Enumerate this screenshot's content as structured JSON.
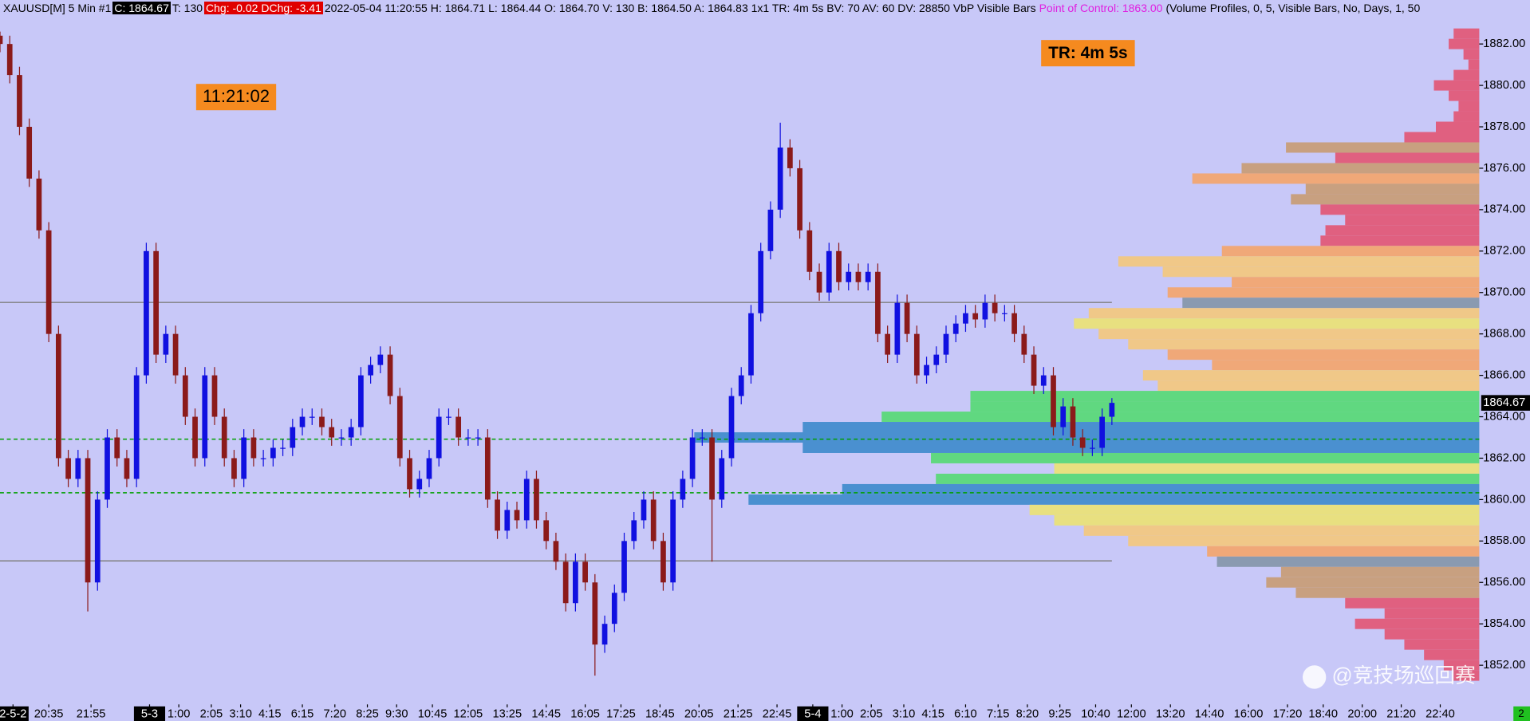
{
  "header": {
    "items": [
      "XAUUSD[M]  5 Min   #1",
      "C: 1864.67",
      "T: 130",
      "Chg: -0.02",
      "DChg: -3.41",
      "2022-05-04 11:20:55 H: 1864.71 L: 1864.44 O: 1864.70 V: 130 B: 1864.50 A: 1864.83 1x1 TR: 4m 5s BV: 70 AV: 60 DV: 28850 VbP Visible Bars",
      "Point of Control: 1863.00",
      "(Volume Profiles, 0, 5, Visible Bars, No, Days, 1, 50"
    ]
  },
  "annotations": {
    "clock": "11:21:02",
    "timer": "TR: 4m 5s",
    "corner": "2",
    "watermark": "@竞技场巡回赛"
  },
  "chart_data": {
    "type": "candlestick",
    "up_color": "#1010e0",
    "down_color": "#8b1a1a",
    "xlim": [
      0,
      455
    ],
    "ylim": [
      1850.11,
      1883.37
    ],
    "yticks": [
      {
        "value": 1852,
        "label": "1852.00"
      },
      {
        "value": 1854,
        "label": "1854.00"
      },
      {
        "value": 1856,
        "label": "1856.00"
      },
      {
        "value": 1858,
        "label": "1858.00"
      },
      {
        "value": 1860,
        "label": "1860.00"
      },
      {
        "value": 1862,
        "label": "1862.00"
      },
      {
        "value": 1864,
        "label": "1864.00"
      },
      {
        "value": 1866,
        "label": "1866.00"
      },
      {
        "value": 1868,
        "label": "1868.00"
      },
      {
        "value": 1870,
        "label": "1870.00"
      },
      {
        "value": 1872,
        "label": "1872.00"
      },
      {
        "value": 1874,
        "label": "1874.00"
      },
      {
        "value": 1876,
        "label": "1876.00"
      },
      {
        "value": 1878,
        "label": "1878.00"
      },
      {
        "value": 1880,
        "label": "1880.00"
      },
      {
        "value": 1882,
        "label": "1882.00"
      }
    ],
    "xticks": [
      {
        "value": 4,
        "label": "2-5-2"
      },
      {
        "value": 15,
        "label": "20:35"
      },
      {
        "value": 28,
        "label": "21:55"
      },
      {
        "value": 46,
        "label": "5-3"
      },
      {
        "value": 55,
        "label": "1:00"
      },
      {
        "value": 65,
        "label": "2:05"
      },
      {
        "value": 74,
        "label": "3:10"
      },
      {
        "value": 83,
        "label": "4:15"
      },
      {
        "value": 93,
        "label": "6:15"
      },
      {
        "value": 103,
        "label": "7:20"
      },
      {
        "value": 113,
        "label": "8:25"
      },
      {
        "value": 122,
        "label": "9:30"
      },
      {
        "value": 133,
        "label": "10:45"
      },
      {
        "value": 144,
        "label": "12:05"
      },
      {
        "value": 156,
        "label": "13:25"
      },
      {
        "value": 168,
        "label": "14:45"
      },
      {
        "value": 180,
        "label": "16:05"
      },
      {
        "value": 191,
        "label": "17:25"
      },
      {
        "value": 203,
        "label": "18:45"
      },
      {
        "value": 215,
        "label": "20:05"
      },
      {
        "value": 227,
        "label": "21:25"
      },
      {
        "value": 239,
        "label": "22:45"
      },
      {
        "value": 250,
        "label": "5-4"
      },
      {
        "value": 259,
        "label": "1:00"
      },
      {
        "value": 268,
        "label": "2:05"
      },
      {
        "value": 278,
        "label": "3:10"
      },
      {
        "value": 287,
        "label": "4:15"
      },
      {
        "value": 297,
        "label": "6:10"
      },
      {
        "value": 307,
        "label": "7:15"
      },
      {
        "value": 316,
        "label": "8:20"
      },
      {
        "value": 326,
        "label": "9:25"
      },
      {
        "value": 337,
        "label": "10:40"
      },
      {
        "value": 348,
        "label": "12:00"
      },
      {
        "value": 360,
        "label": "13:20"
      },
      {
        "value": 372,
        "label": "14:40"
      },
      {
        "value": 384,
        "label": "16:00"
      },
      {
        "value": 396,
        "label": "17:20"
      },
      {
        "value": 407,
        "label": "18:40"
      },
      {
        "value": 419,
        "label": "20:00"
      },
      {
        "value": 431,
        "label": "21:20"
      },
      {
        "value": 443,
        "label": "22:40"
      }
    ],
    "x": [
      0,
      3,
      6,
      9,
      12,
      15,
      18,
      21,
      24,
      27,
      30,
      33,
      36,
      39,
      42,
      45,
      48,
      51,
      54,
      57,
      60,
      63,
      66,
      69,
      72,
      75,
      78,
      81,
      84,
      87,
      90,
      93,
      96,
      99,
      102,
      105,
      108,
      111,
      114,
      117,
      120,
      123,
      126,
      129,
      132,
      135,
      138,
      141,
      144,
      147,
      150,
      153,
      156,
      159,
      162,
      165,
      168,
      171,
      174,
      177,
      180,
      183,
      186,
      189,
      192,
      195,
      198,
      201,
      204,
      207,
      210,
      213,
      216,
      219,
      222,
      225,
      228,
      231,
      234,
      237,
      240,
      243,
      246,
      249,
      252,
      255,
      258,
      261,
      264,
      267,
      270,
      273,
      276,
      279,
      282,
      285,
      288,
      291,
      294,
      297,
      300,
      303,
      306,
      309,
      312,
      315,
      318,
      321,
      324,
      327,
      330,
      333,
      336,
      339,
      342
    ],
    "open": [
      1882.4,
      1882,
      1880.5,
      1878,
      1875.5,
      1873,
      1868,
      1862,
      1861,
      1862,
      1856,
      1860,
      1863,
      1862,
      1861,
      1866,
      1872,
      1867,
      1868,
      1866,
      1864,
      1862,
      1866,
      1864,
      1862,
      1861,
      1863,
      1862,
      1862,
      1862.5,
      1862.5,
      1863.5,
      1864,
      1864,
      1863.5,
      1863,
      1863,
      1863.5,
      1866,
      1866.5,
      1867,
      1865,
      1862,
      1860.5,
      1861,
      1862,
      1864,
      1864,
      1863,
      1863,
      1863,
      1860,
      1858.5,
      1859.5,
      1859,
      1861,
      1859,
      1858,
      1857,
      1855,
      1857,
      1856,
      1853,
      1854,
      1855.5,
      1858,
      1859,
      1860,
      1858,
      1856,
      1860,
      1861,
      1863,
      1863,
      1860,
      1862,
      1865,
      1866,
      1869,
      1872,
      1874,
      1877,
      1876,
      1873,
      1871,
      1870,
      1872,
      1870.5,
      1871,
      1870.5,
      1871,
      1868,
      1867,
      1869.5,
      1868,
      1866,
      1866.5,
      1867,
      1868,
      1868.5,
      1869,
      1868.7,
      1869.5,
      1869,
      1869,
      1868,
      1867,
      1865.5,
      1866,
      1863.5,
      1864.5,
      1863,
      1862.5,
      1862.5,
      1864
    ],
    "high": [
      1882.6,
      1882.4,
      1880.9,
      1878.4,
      1875.9,
      1873.4,
      1868.4,
      1862.4,
      1862.4,
      1862.4,
      1860.4,
      1863.4,
      1863.4,
      1862.4,
      1866.4,
      1872.4,
      1872.4,
      1868.4,
      1868.4,
      1866.4,
      1864.4,
      1866.4,
      1866.4,
      1864.4,
      1862.4,
      1863.4,
      1863.4,
      1862.4,
      1862.9,
      1862.9,
      1863.9,
      1864.4,
      1864.4,
      1864.4,
      1863.9,
      1863.4,
      1863.9,
      1866.4,
      1866.9,
      1867.4,
      1867.4,
      1865.4,
      1862.4,
      1861.4,
      1862.4,
      1864.4,
      1864.4,
      1864.4,
      1863.4,
      1863.4,
      1863.4,
      1860.4,
      1859.9,
      1859.9,
      1861.4,
      1861.4,
      1859.4,
      1858.4,
      1857.4,
      1857.4,
      1857.4,
      1856.4,
      1854.4,
      1855.9,
      1858.4,
      1859.4,
      1860.4,
      1860.4,
      1858.4,
      1860.4,
      1861.4,
      1863.4,
      1863.4,
      1863.4,
      1862.4,
      1865.4,
      1866.4,
      1869.4,
      1872.4,
      1874.4,
      1878.2,
      1877.4,
      1876.4,
      1873.4,
      1871.4,
      1872.4,
      1872.4,
      1871.4,
      1871.4,
      1871.4,
      1871.4,
      1868.4,
      1869.9,
      1869.9,
      1868.4,
      1866.9,
      1867.4,
      1868.4,
      1868.9,
      1869.4,
      1869.4,
      1869.9,
      1869.9,
      1869.4,
      1869.4,
      1868.4,
      1867.4,
      1866.4,
      1866.4,
      1864.9,
      1864.9,
      1863.4,
      1862.9,
      1864.4,
      1864.9
    ],
    "low": [
      1881.6,
      1880.1,
      1877.6,
      1875.1,
      1872.6,
      1867.6,
      1861.6,
      1860.6,
      1860.6,
      1854.6,
      1855.6,
      1859.6,
      1861.6,
      1860.6,
      1860.6,
      1865.6,
      1866.6,
      1866.6,
      1865.6,
      1863.6,
      1861.6,
      1861.6,
      1863.6,
      1861.6,
      1860.6,
      1860.6,
      1861.6,
      1861.6,
      1861.6,
      1862.1,
      1862.1,
      1863.1,
      1863.6,
      1863.1,
      1862.6,
      1862.6,
      1862.6,
      1863.1,
      1865.6,
      1866.1,
      1864.6,
      1861.6,
      1860.1,
      1860.1,
      1860.6,
      1861.6,
      1863.6,
      1862.6,
      1862.6,
      1862.6,
      1859.6,
      1858.1,
      1858.1,
      1858.6,
      1858.6,
      1858.6,
      1857.6,
      1856.6,
      1854.6,
      1854.6,
      1855.6,
      1851.5,
      1852.6,
      1853.6,
      1855.1,
      1857.6,
      1858.6,
      1857.6,
      1855.6,
      1855.6,
      1859.6,
      1860.6,
      1862.6,
      1857,
      1859.6,
      1861.6,
      1864.6,
      1865.6,
      1868.6,
      1871.6,
      1873.6,
      1875.6,
      1872.6,
      1870.6,
      1869.6,
      1869.6,
      1870.1,
      1870.1,
      1870.1,
      1870.1,
      1867.6,
      1866.6,
      1866.6,
      1867.6,
      1865.6,
      1865.6,
      1866.1,
      1866.6,
      1867.6,
      1868.1,
      1868.3,
      1868.3,
      1868.6,
      1868.6,
      1867.6,
      1866.6,
      1865.1,
      1865.1,
      1863.1,
      1863.1,
      1862.6,
      1862.1,
      1862.1,
      1862.1,
      1863.6
    ],
    "close": [
      1882,
      1880.5,
      1878,
      1875.5,
      1873,
      1868,
      1862,
      1861,
      1862,
      1856,
      1860,
      1863,
      1862,
      1861,
      1866,
      1872,
      1867,
      1868,
      1866,
      1864,
      1862,
      1866,
      1864,
      1862,
      1861,
      1863,
      1862,
      1862,
      1862.5,
      1862.5,
      1863.5,
      1864,
      1864,
      1863.5,
      1863,
      1863,
      1863.5,
      1866,
      1866.5,
      1867,
      1865,
      1862,
      1860.5,
      1861,
      1862,
      1864,
      1864,
      1863,
      1863,
      1863,
      1860,
      1858.5,
      1859.5,
      1859,
      1861,
      1859,
      1858,
      1857,
      1855,
      1857,
      1856,
      1853,
      1854,
      1855.5,
      1858,
      1859,
      1860,
      1858,
      1856,
      1860,
      1861,
      1863,
      1863,
      1860,
      1862,
      1865,
      1866,
      1869,
      1872,
      1874,
      1877,
      1876,
      1873,
      1871,
      1870,
      1872,
      1870.5,
      1871,
      1870.5,
      1871,
      1868,
      1867,
      1869.5,
      1868,
      1866,
      1866.5,
      1867,
      1868,
      1868.5,
      1869,
      1868.7,
      1869.5,
      1869,
      1869,
      1868,
      1867,
      1865.5,
      1866,
      1863.5,
      1864.5,
      1863,
      1862.5,
      1862.5,
      1864,
      1864.67
    ],
    "last_price": 1864.67,
    "lines": [
      {
        "value": 1869.52,
        "color": "#808080",
        "dashed": false,
        "end": 342
      },
      {
        "value": 1857.04,
        "color": "#808080",
        "dashed": false,
        "end": 342
      },
      {
        "value": 1862.92,
        "color": "#00a000",
        "dashed": true
      },
      {
        "value": 1860.33,
        "color": "#00a000",
        "dashed": true
      }
    ],
    "profile": {
      "vlim": [
        0,
        30000
      ],
      "prices": [
        1882.5,
        1882,
        1881.5,
        1881,
        1880.5,
        1880,
        1879.5,
        1879,
        1878.5,
        1878,
        1877.5,
        1877,
        1876.5,
        1876,
        1875.5,
        1875,
        1874.5,
        1874,
        1873.5,
        1873,
        1872.5,
        1872,
        1871.5,
        1871,
        1870.5,
        1870,
        1869.5,
        1869,
        1868.5,
        1868,
        1867.5,
        1867,
        1866.5,
        1866,
        1865.5,
        1865,
        1864.5,
        1864,
        1863.5,
        1863,
        1862.5,
        1862,
        1861.5,
        1861,
        1860.5,
        1860,
        1859.5,
        1859,
        1858.5,
        1858,
        1857.5,
        1857,
        1856.5,
        1856,
        1855.5,
        1855,
        1854.5,
        1854,
        1853.5,
        1853,
        1852.5,
        1852,
        1851.5
      ],
      "volumes": [
        520,
        620,
        320,
        220,
        520,
        920,
        620,
        420,
        520,
        880,
        1520,
        3920,
        2920,
        4820,
        5820,
        3520,
        3820,
        3220,
        2720,
        3120,
        3220,
        5220,
        7320,
        6420,
        5020,
        6320,
        6020,
        7920,
        8220,
        7720,
        7120,
        6320,
        5420,
        6820,
        6520,
        10320,
        10320,
        12120,
        13720,
        15920,
        13720,
        11120,
        8620,
        11020,
        12920,
        14820,
        9120,
        8620,
        8020,
        7120,
        5520,
        5320,
        4020,
        4320,
        3720,
        2720,
        1920,
        2520,
        1920,
        1520,
        1120,
        720,
        520
      ],
      "colors": [
        "#e06080",
        "#e06080",
        "#e06080",
        "#e06080",
        "#e06080",
        "#e06080",
        "#e06080",
        "#e06080",
        "#e06080",
        "#e06080",
        "#e06080",
        "#c8a080",
        "#e06080",
        "#c8a080",
        "#f0a878",
        "#c8a080",
        "#c8a080",
        "#e06080",
        "#e06080",
        "#e06080",
        "#e06080",
        "#f0a878",
        "#f0c888",
        "#f0c888",
        "#f0a878",
        "#f0a878",
        "#8a9ab0",
        "#f0c888",
        "#e8e080",
        "#f0c888",
        "#f0c888",
        "#f0a878",
        "#f0a878",
        "#f0c888",
        "#f0c888",
        "#60d880",
        "#60d880",
        "#60d880",
        "#4a90d0",
        "#4a90d0",
        "#4a90d0",
        "#60d880",
        "#e8e080",
        "#60d880",
        "#4a90d0",
        "#4a90d0",
        "#e8e080",
        "#e8e080",
        "#f0c888",
        "#f0c888",
        "#f0a878",
        "#8a9ab0",
        "#c8a080",
        "#c8a080",
        "#c8a080",
        "#e06080",
        "#e06080",
        "#e06080",
        "#e06080",
        "#e06080",
        "#e06080",
        "#e06080",
        "#e06080"
      ]
    }
  }
}
